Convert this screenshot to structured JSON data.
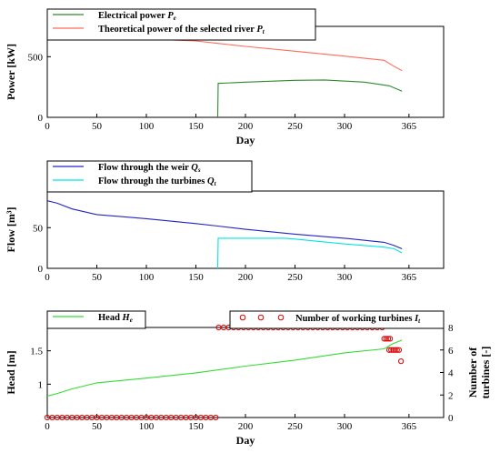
{
  "chart_data": [
    {
      "type": "line",
      "xlabel": "Day",
      "ylabel": "Power [kW]",
      "xlim": [
        0,
        400
      ],
      "ylim": [
        0,
        750
      ],
      "xticks": [
        0,
        50,
        100,
        150,
        200,
        250,
        300,
        365
      ],
      "yticks": [
        0,
        500
      ],
      "legend_position": "top-left",
      "series": [
        {
          "name": "Electrical power",
          "symbol": "P",
          "sub": "e",
          "color": "#2e8b2e",
          "x": [
            0,
            172,
            172.5,
            200,
            250,
            280,
            320,
            345,
            358
          ],
          "y": [
            null,
            0,
            280,
            290,
            305,
            308,
            290,
            260,
            215
          ]
        },
        {
          "name": "Theoretical power of the selected river",
          "symbol": "P",
          "sub": "t",
          "color": "#ff6b5a",
          "x": [
            0,
            50,
            100,
            150,
            172,
            200,
            250,
            300,
            340,
            348,
            358
          ],
          "y": [
            670,
            660,
            645,
            630,
            610,
            585,
            545,
            505,
            470,
            430,
            385
          ]
        }
      ]
    },
    {
      "type": "line",
      "xlabel": "",
      "ylabel": "Flow [m³]",
      "xlim": [
        0,
        400
      ],
      "ylim": [
        0,
        95
      ],
      "xticks": [
        0,
        50,
        100,
        150,
        200,
        250,
        300,
        365
      ],
      "yticks": [
        0,
        50
      ],
      "legend_position": "top-left",
      "series": [
        {
          "name": "Flow through the weir",
          "symbol": "Q",
          "sub": "s",
          "color": "#2323c8",
          "x": [
            0,
            10,
            25,
            50,
            100,
            150,
            172,
            200,
            250,
            300,
            340,
            350,
            358
          ],
          "y": [
            83,
            80,
            73,
            66,
            61,
            55,
            52,
            48,
            42,
            37,
            32,
            28,
            24
          ]
        },
        {
          "name": "Flow through the turbines",
          "symbol": "Q",
          "sub": "t",
          "color": "#00e5e5",
          "x": [
            172,
            172.5,
            200,
            240,
            250,
            300,
            340,
            350,
            358
          ],
          "y": [
            0,
            37,
            37,
            37,
            36,
            30,
            26,
            24,
            19
          ]
        }
      ]
    },
    {
      "type": "line",
      "xlabel": "Day",
      "ylabel": "Head [m]",
      "y2label": "Number of turbines [-]",
      "xlim": [
        0,
        400
      ],
      "ylim": [
        0.5,
        1.85
      ],
      "y2lim": [
        0,
        8
      ],
      "xticks": [
        0,
        50,
        100,
        150,
        200,
        250,
        300,
        365
      ],
      "yticks": [
        1,
        1.5
      ],
      "y2ticks": [
        0,
        2,
        4,
        6,
        8
      ],
      "legend_position": "top",
      "series": [
        {
          "name": "Head",
          "symbol": "H",
          "sub": "e",
          "color": "#33dd33",
          "axis": "left",
          "x": [
            0,
            10,
            25,
            50,
            100,
            150,
            200,
            250,
            300,
            340,
            348,
            358
          ],
          "y": [
            0.82,
            0.86,
            0.93,
            1.02,
            1.09,
            1.17,
            1.27,
            1.36,
            1.47,
            1.53,
            1.6,
            1.66
          ]
        },
        {
          "name": "Number of working turbines",
          "symbol": "I",
          "sub": "t",
          "color": "#dd0000",
          "axis": "right",
          "marker": "circle",
          "points": [
            [
              0,
              0
            ],
            [
              5,
              0
            ],
            [
              10,
              0
            ],
            [
              15,
              0
            ],
            [
              20,
              0
            ],
            [
              25,
              0
            ],
            [
              30,
              0
            ],
            [
              35,
              0
            ],
            [
              40,
              0
            ],
            [
              45,
              0
            ],
            [
              50,
              0
            ],
            [
              55,
              0
            ],
            [
              60,
              0
            ],
            [
              65,
              0
            ],
            [
              70,
              0
            ],
            [
              75,
              0
            ],
            [
              80,
              0
            ],
            [
              85,
              0
            ],
            [
              90,
              0
            ],
            [
              95,
              0
            ],
            [
              100,
              0
            ],
            [
              105,
              0
            ],
            [
              110,
              0
            ],
            [
              115,
              0
            ],
            [
              120,
              0
            ],
            [
              125,
              0
            ],
            [
              130,
              0
            ],
            [
              135,
              0
            ],
            [
              140,
              0
            ],
            [
              145,
              0
            ],
            [
              150,
              0
            ],
            [
              155,
              0
            ],
            [
              160,
              0
            ],
            [
              165,
              0
            ],
            [
              170,
              0
            ],
            [
              173,
              8
            ],
            [
              178,
              8
            ],
            [
              183,
              8
            ],
            [
              188,
              8
            ],
            [
              193,
              8
            ],
            [
              198,
              8
            ],
            [
              203,
              8
            ],
            [
              208,
              8
            ],
            [
              213,
              8
            ],
            [
              218,
              8
            ],
            [
              223,
              8
            ],
            [
              228,
              8
            ],
            [
              233,
              8
            ],
            [
              238,
              8
            ],
            [
              243,
              8
            ],
            [
              248,
              8
            ],
            [
              253,
              8
            ],
            [
              258,
              8
            ],
            [
              263,
              8
            ],
            [
              268,
              8
            ],
            [
              273,
              8
            ],
            [
              278,
              8
            ],
            [
              283,
              8
            ],
            [
              288,
              8
            ],
            [
              293,
              8
            ],
            [
              298,
              8
            ],
            [
              303,
              8
            ],
            [
              308,
              8
            ],
            [
              313,
              8
            ],
            [
              318,
              8
            ],
            [
              323,
              8
            ],
            [
              328,
              8
            ],
            [
              333,
              8
            ],
            [
              338,
              8
            ],
            [
              340,
              7
            ],
            [
              342,
              7
            ],
            [
              344,
              7
            ],
            [
              346,
              7
            ],
            [
              345,
              6
            ],
            [
              347,
              6
            ],
            [
              349,
              6
            ],
            [
              351,
              6
            ],
            [
              353,
              6
            ],
            [
              355,
              6
            ],
            [
              357,
              5
            ]
          ]
        }
      ]
    }
  ]
}
